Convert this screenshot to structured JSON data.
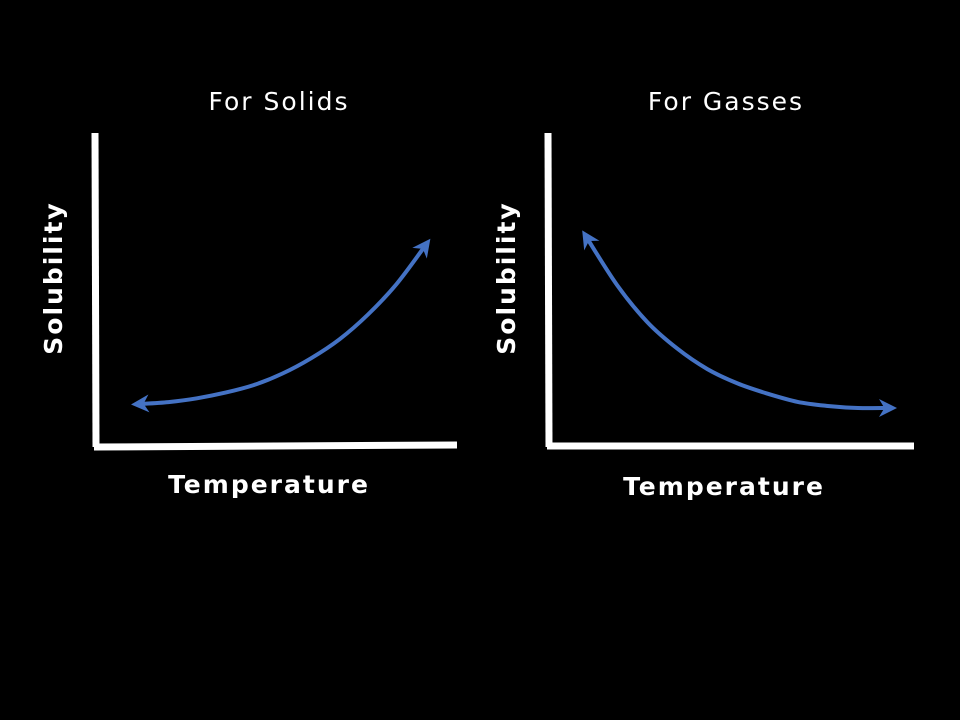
{
  "chart_data": [
    {
      "type": "line",
      "title": "For Solids",
      "xlabel": "Temperature",
      "ylabel": "Solubility",
      "trend": "increasing",
      "x": [
        0,
        1,
        2,
        3,
        4,
        5,
        6,
        7,
        8,
        9,
        10
      ],
      "y": [
        0.1,
        0.11,
        0.13,
        0.16,
        0.2,
        0.26,
        0.34,
        0.44,
        0.57,
        0.73,
        0.93
      ],
      "arrows": "both ends",
      "colors": {
        "line": "#4472C4",
        "axes": "#ffffff"
      },
      "grid": false,
      "legend": false
    },
    {
      "type": "line",
      "title": "For Gasses",
      "xlabel": "Temperature",
      "ylabel": "Solubility",
      "trend": "decreasing",
      "x": [
        0,
        1,
        2,
        3,
        4,
        5,
        6,
        7,
        8,
        9,
        10
      ],
      "y": [
        0.93,
        0.7,
        0.52,
        0.39,
        0.29,
        0.22,
        0.17,
        0.13,
        0.11,
        0.1,
        0.1
      ],
      "arrows": "both ends",
      "colors": {
        "line": "#4472C4",
        "axes": "#ffffff"
      },
      "grid": false,
      "legend": false
    }
  ]
}
